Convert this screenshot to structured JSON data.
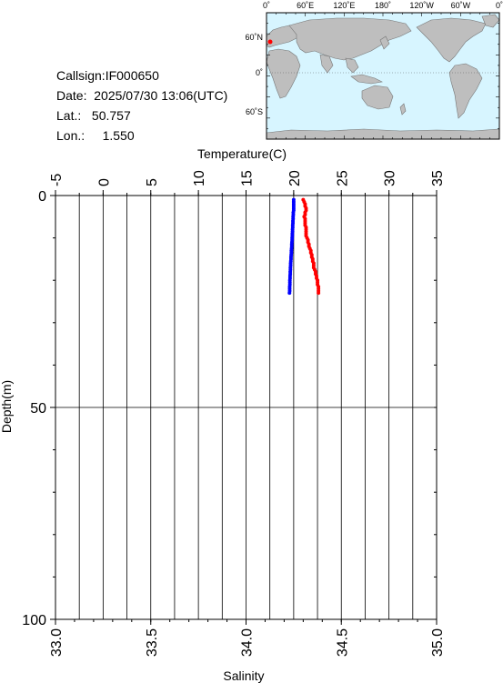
{
  "header": {
    "callsign_label": "Callsign:",
    "callsign": "IF000650",
    "date_label": "Date:",
    "date": "2025/07/30 13:06(UTC)",
    "lat_label": "Lat.:",
    "lat": "50.757",
    "lon_label": "Lon.:",
    "lon": "1.550"
  },
  "map": {
    "top_labels": [
      "0˚",
      "60˚E",
      "120˚E",
      "180˚",
      "120˚W",
      "60˚W",
      "0˚"
    ],
    "left_labels": [
      "60˚N",
      "0˚",
      "60˚S"
    ],
    "ocean_color": "#d7f5ff",
    "land_color": "#bebebe",
    "marker_color": "#ff0000"
  },
  "chart_data": {
    "type": "line",
    "top_axis": {
      "label": "Temperature(C)",
      "range": [
        -5,
        35
      ],
      "ticks": [
        "-5",
        "0",
        "5",
        "10",
        "15",
        "20",
        "25",
        "30",
        "35"
      ]
    },
    "bottom_axis": {
      "label": "Salinity",
      "range": [
        33.0,
        35.0
      ],
      "ticks": [
        "33.0",
        "33.5",
        "34.0",
        "34.5",
        "35.0"
      ]
    },
    "y_axis": {
      "label": "Depth(m)",
      "range": [
        0,
        100
      ],
      "inverted": true,
      "ticks": [
        "0",
        "50",
        "100"
      ]
    },
    "grid": true,
    "series": [
      {
        "color": "#ff0000",
        "axis": "temperature",
        "points": [
          [
            21.0,
            1.0
          ],
          [
            21.1,
            1.5
          ],
          [
            21.2,
            2.0
          ],
          [
            21.2,
            2.5
          ],
          [
            21.3,
            3.0
          ],
          [
            21.3,
            3.5
          ],
          [
            21.2,
            4.0
          ],
          [
            21.2,
            4.5
          ],
          [
            21.1,
            5.0
          ],
          [
            21.2,
            5.5
          ],
          [
            21.2,
            6.0
          ],
          [
            21.2,
            6.5
          ],
          [
            21.2,
            7.0
          ],
          [
            21.3,
            7.5
          ],
          [
            21.3,
            8.0
          ],
          [
            21.3,
            8.5
          ],
          [
            21.3,
            9.0
          ],
          [
            21.3,
            9.5
          ],
          [
            21.4,
            10.0
          ],
          [
            21.5,
            10.5
          ],
          [
            21.5,
            11.0
          ],
          [
            21.6,
            11.5
          ],
          [
            21.6,
            12.0
          ],
          [
            21.7,
            12.5
          ],
          [
            21.8,
            13.0
          ],
          [
            21.8,
            13.5
          ],
          [
            21.9,
            14.0
          ],
          [
            21.9,
            14.5
          ],
          [
            22.0,
            15.0
          ],
          [
            22.0,
            15.5
          ],
          [
            22.1,
            16.0
          ],
          [
            22.1,
            16.5
          ],
          [
            22.1,
            17.0
          ],
          [
            22.2,
            17.5
          ],
          [
            22.3,
            18.0
          ],
          [
            22.3,
            18.5
          ],
          [
            22.4,
            19.0
          ],
          [
            22.4,
            19.5
          ],
          [
            22.5,
            20.0
          ],
          [
            22.5,
            20.5
          ],
          [
            22.5,
            21.0
          ],
          [
            22.6,
            21.5
          ],
          [
            22.6,
            22.0
          ],
          [
            22.6,
            22.5
          ],
          [
            22.6,
            23.0
          ]
        ]
      },
      {
        "color": "#0000ff",
        "axis": "salinity",
        "points": [
          [
            34.25,
            1.0
          ],
          [
            34.25,
            1.5
          ],
          [
            34.25,
            2.0
          ],
          [
            34.25,
            2.5
          ],
          [
            34.25,
            3.0
          ],
          [
            34.25,
            3.5
          ],
          [
            34.248,
            4.0
          ],
          [
            34.248,
            4.5
          ],
          [
            34.247,
            5.0
          ],
          [
            34.247,
            5.5
          ],
          [
            34.246,
            6.0
          ],
          [
            34.246,
            6.5
          ],
          [
            34.245,
            7.0
          ],
          [
            34.245,
            7.5
          ],
          [
            34.244,
            8.0
          ],
          [
            34.244,
            8.5
          ],
          [
            34.243,
            9.0
          ],
          [
            34.243,
            9.5
          ],
          [
            34.242,
            10.0
          ],
          [
            34.242,
            10.5
          ],
          [
            34.241,
            11.0
          ],
          [
            34.24,
            11.5
          ],
          [
            34.24,
            12.0
          ],
          [
            34.239,
            12.5
          ],
          [
            34.238,
            13.0
          ],
          [
            34.238,
            13.5
          ],
          [
            34.237,
            14.0
          ],
          [
            34.236,
            14.5
          ],
          [
            34.236,
            15.0
          ],
          [
            34.235,
            15.5
          ],
          [
            34.234,
            16.0
          ],
          [
            34.234,
            16.5
          ],
          [
            34.233,
            17.0
          ],
          [
            34.233,
            17.5
          ],
          [
            34.232,
            18.0
          ],
          [
            34.232,
            18.5
          ],
          [
            34.231,
            19.0
          ],
          [
            34.231,
            19.5
          ],
          [
            34.23,
            20.0
          ],
          [
            34.23,
            20.5
          ],
          [
            34.23,
            21.0
          ],
          [
            34.229,
            21.5
          ],
          [
            34.229,
            22.0
          ],
          [
            34.229,
            22.5
          ],
          [
            34.228,
            23.0
          ]
        ]
      }
    ]
  }
}
